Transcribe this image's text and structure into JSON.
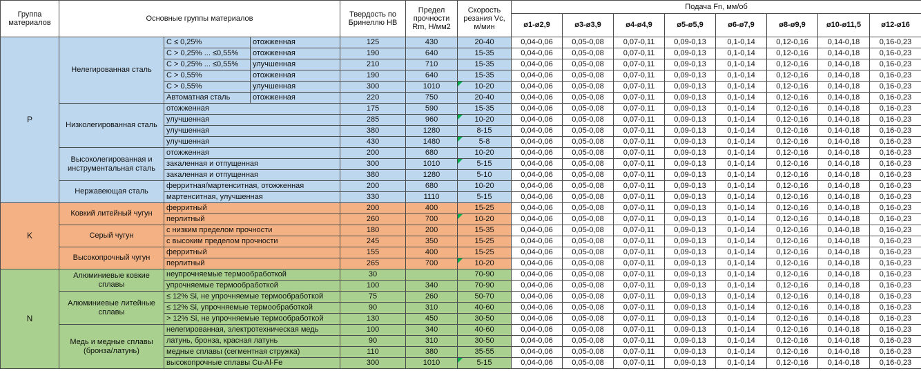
{
  "colors": {
    "group_P": "#BDD7EE",
    "group_K": "#F4B183",
    "group_N": "#A9D08E",
    "flag_marker": "#00B050",
    "border": "#4D4D4D"
  },
  "table": {
    "header": {
      "group": "Группа материалов",
      "materials": "Основные группы материалов",
      "hardness": "Твердость по Бринеллю HB",
      "strength": "Предел прочности Rm, Н/мм2",
      "speed": "Скорость резания Vc, м/мин",
      "feed_title": "Подача Fn, мм/об",
      "diameters": [
        "ø1-ø2,9",
        "ø3-ø3,9",
        "ø4-ø4,9",
        "ø5-ø5,9",
        "ø6-ø7,9",
        "ø8-ø9,9",
        "ø10-ø11,5",
        "ø12-ø16"
      ]
    },
    "feed_values": [
      "0,04-0,06",
      "0,05-0,08",
      "0,07-0,11",
      "0,09-0,13",
      "0,1-0,14",
      "0,12-0,16",
      "0,14-0,18",
      "0,16-0,23"
    ],
    "groups": [
      {
        "code": "P",
        "color": "#BDD7EE",
        "subgroups": [
          {
            "name": "Нелегированная сталь",
            "rows": [
              {
                "cells": [
                  "C ≤ 0,25%",
                  "отожженная"
                ],
                "hb": "125",
                "rm": "430",
                "vc": "20-40"
              },
              {
                "cells": [
                  "C > 0,25% ... ≤0,55%",
                  "отожженная"
                ],
                "hb": "190",
                "rm": "640",
                "vc": "15-35"
              },
              {
                "cells": [
                  "C > 0,25% ... ≤0,55%",
                  "улучшенная"
                ],
                "hb": "210",
                "rm": "710",
                "vc": "15-35"
              },
              {
                "cells": [
                  "C > 0,55%",
                  "отожженная"
                ],
                "hb": "190",
                "rm": "640",
                "vc": "15-35"
              },
              {
                "cells": [
                  "C > 0,55%",
                  "улучшенная"
                ],
                "hb": "300",
                "rm": "1010",
                "vc": "10-20",
                "flag": true
              },
              {
                "cells": [
                  "Автоматная сталь",
                  "отожженная"
                ],
                "hb": "220",
                "rm": "750",
                "vc": "20-40"
              }
            ]
          },
          {
            "name": "Низколегированная сталь",
            "rows": [
              {
                "cells": [
                  "отожженная"
                ],
                "hb": "175",
                "rm": "590",
                "vc": "15-35"
              },
              {
                "cells": [
                  "улучшенная"
                ],
                "hb": "285",
                "rm": "960",
                "vc": "10-20",
                "flag": true
              },
              {
                "cells": [
                  "улучшенная"
                ],
                "hb": "380",
                "rm": "1280",
                "vc": "8-15"
              },
              {
                "cells": [
                  "улучшенная"
                ],
                "hb": "430",
                "rm": "1480",
                "vc": "5-8",
                "flag": true
              }
            ]
          },
          {
            "name": "Высоколегированная и инструментальная сталь",
            "rows": [
              {
                "cells": [
                  "отожженная"
                ],
                "hb": "200",
                "rm": "680",
                "vc": "10-20"
              },
              {
                "cells": [
                  "закаленная и отпущенная"
                ],
                "hb": "300",
                "rm": "1010",
                "vc": "5-15",
                "flag": true
              },
              {
                "cells": [
                  "закаленная и отпущенная"
                ],
                "hb": "380",
                "rm": "1280",
                "vc": "5-10"
              }
            ]
          },
          {
            "name": "Нержавеющая сталь",
            "rows": [
              {
                "cells": [
                  "ферритная/мартенситная, отожженная"
                ],
                "hb": "200",
                "rm": "680",
                "vc": "10-20"
              },
              {
                "cells": [
                  "мартенситная, улучшенная"
                ],
                "hb": "330",
                "rm": "1110",
                "vc": "5-15"
              }
            ]
          }
        ]
      },
      {
        "code": "K",
        "color": "#F4B183",
        "subgroups": [
          {
            "name": "Ковкий литейный чугун",
            "rows": [
              {
                "cells": [
                  "ферритный"
                ],
                "hb": "200",
                "rm": "400",
                "vc": "15-25"
              },
              {
                "cells": [
                  "перлитный"
                ],
                "hb": "260",
                "rm": "700",
                "vc": "10-20",
                "flag": true
              }
            ]
          },
          {
            "name": "Серый чугун",
            "rows": [
              {
                "cells": [
                  "с низким пределом прочности"
                ],
                "hb": "180",
                "rm": "200",
                "vc": "15-35"
              },
              {
                "cells": [
                  "с высоким пределом прочности"
                ],
                "hb": "245",
                "rm": "350",
                "vc": "15-25"
              }
            ]
          },
          {
            "name": "Высокопрочный чугун",
            "rows": [
              {
                "cells": [
                  "ферритный"
                ],
                "hb": "155",
                "rm": "400",
                "vc": "15-25"
              },
              {
                "cells": [
                  "перлитный"
                ],
                "hb": "265",
                "rm": "700",
                "vc": "10-20",
                "flag": true
              }
            ]
          }
        ]
      },
      {
        "code": "N",
        "color": "#A9D08E",
        "subgroups": [
          {
            "name": "Алюминиевые ковкие сплавы",
            "rows": [
              {
                "cells": [
                  "неупрочняемые термообработкой"
                ],
                "hb": "30",
                "rm": "",
                "vc": "70-90"
              },
              {
                "cells": [
                  "упрочняемые термообработкой"
                ],
                "hb": "100",
                "rm": "340",
                "vc": "70-90"
              }
            ]
          },
          {
            "name": "Алюминиевые литейные сплавы",
            "rows": [
              {
                "cells": [
                  "≤ 12% Si, не упрочняемые термообработкой"
                ],
                "hb": "75",
                "rm": "260",
                "vc": "50-70"
              },
              {
                "cells": [
                  "≤ 12% Si, упрочняемые термообработкой"
                ],
                "hb": "90",
                "rm": "310",
                "vc": "40-60"
              },
              {
                "cells": [
                  "> 12% Si, не упрочняемые термообработкой"
                ],
                "hb": "130",
                "rm": "450",
                "vc": "30-50"
              }
            ]
          },
          {
            "name": "Медь и медные сплавы (бронза/латунь)",
            "rows": [
              {
                "cells": [
                  "нелегированная, электротехническая медь"
                ],
                "hb": "100",
                "rm": "340",
                "vc": "40-60"
              },
              {
                "cells": [
                  "латунь, бронза, красная латунь"
                ],
                "hb": "90",
                "rm": "310",
                "vc": "30-50"
              },
              {
                "cells": [
                  "медные сплавы (сегментная стружка)"
                ],
                "hb": "110",
                "rm": "380",
                "vc": "35-55"
              },
              {
                "cells": [
                  "высокопрочные сплавы Cu-Al-Fe"
                ],
                "hb": "300",
                "rm": "1010",
                "vc": "5-15",
                "flag": true
              }
            ]
          }
        ]
      }
    ]
  }
}
